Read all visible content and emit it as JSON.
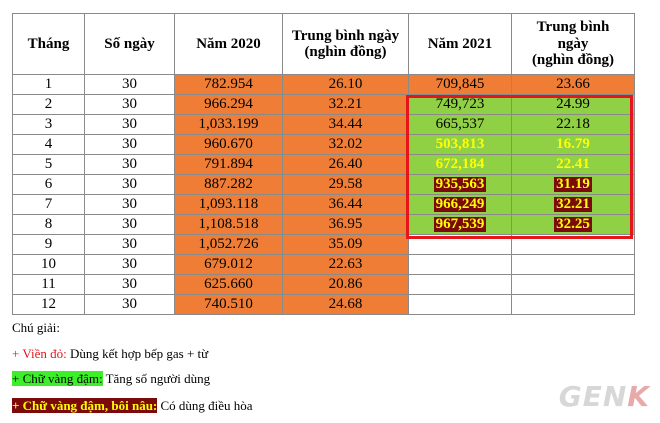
{
  "headers": [
    "Tháng",
    "Số ngày",
    "Năm 2020",
    "Trung bình ngày\n(nghìn đồng)",
    "Năm 2021",
    "Trung bình\nngày\n(nghìn đồng)"
  ],
  "rows": [
    {
      "month": "1",
      "days": "30",
      "y2020": "782.954",
      "avg2020": "26.10",
      "y2021": "709,845",
      "avg2021": "23.66",
      "style2021": "orange"
    },
    {
      "month": "2",
      "days": "30",
      "y2020": "966.294",
      "avg2020": "32.21",
      "y2021": "749,723",
      "avg2021": "24.99",
      "style2021": "green"
    },
    {
      "month": "3",
      "days": "30",
      "y2020": "1,033.199",
      "avg2020": "34.44",
      "y2021": "665,537",
      "avg2021": "22.18",
      "style2021": "green"
    },
    {
      "month": "4",
      "days": "30",
      "y2020": "960.670",
      "avg2020": "32.02",
      "y2021": "503,813",
      "avg2021": "16.79",
      "style2021": "green-yellow"
    },
    {
      "month": "5",
      "days": "30",
      "y2020": "791.894",
      "avg2020": "26.40",
      "y2021": "672,184",
      "avg2021": "22.41",
      "style2021": "green-yellow"
    },
    {
      "month": "6",
      "days": "30",
      "y2020": "887.282",
      "avg2020": "29.58",
      "y2021": "935,563",
      "avg2021": "31.19",
      "style2021": "brown"
    },
    {
      "month": "7",
      "days": "30",
      "y2020": "1,093.118",
      "avg2020": "36.44",
      "y2021": "966,249",
      "avg2021": "32.21",
      "style2021": "brown"
    },
    {
      "month": "8",
      "days": "30",
      "y2020": "1,108.518",
      "avg2020": "36.95",
      "y2021": "967,539",
      "avg2021": "32.25",
      "style2021": "brown"
    },
    {
      "month": "9",
      "days": "30",
      "y2020": "1,052.726",
      "avg2020": "35.09",
      "y2021": "",
      "avg2021": "",
      "style2021": "empty"
    },
    {
      "month": "10",
      "days": "30",
      "y2020": "679.012",
      "avg2020": "22.63",
      "y2021": "",
      "avg2021": "",
      "style2021": "empty"
    },
    {
      "month": "11",
      "days": "30",
      "y2020": "625.660",
      "avg2020": "20.86",
      "y2021": "",
      "avg2021": "",
      "style2021": "empty"
    },
    {
      "month": "12",
      "days": "30",
      "y2020": "740.510",
      "avg2020": "24.68",
      "y2021": "",
      "avg2021": "",
      "style2021": "empty"
    }
  ],
  "legend": {
    "title": "Chú giải:",
    "item1_marker": "+ Viền đỏ:",
    "item1_text": " Dùng kết hợp bếp gas + từ",
    "item2_marker": "+ Chữ vàng đậm:",
    "item2_text": " Tăng số người dùng",
    "item3_marker": "+ Chữ vàng đậm, bôi nâu:",
    "item3_text": " Có dùng điều hòa"
  },
  "logo": {
    "main": "GEN",
    "accent": "K"
  },
  "colors": {
    "orange": "#ef7d35",
    "green": "#8fd045",
    "brown": "#7b0a0a",
    "yellow_text": "#ffff00",
    "red_border": "#e4161c"
  }
}
